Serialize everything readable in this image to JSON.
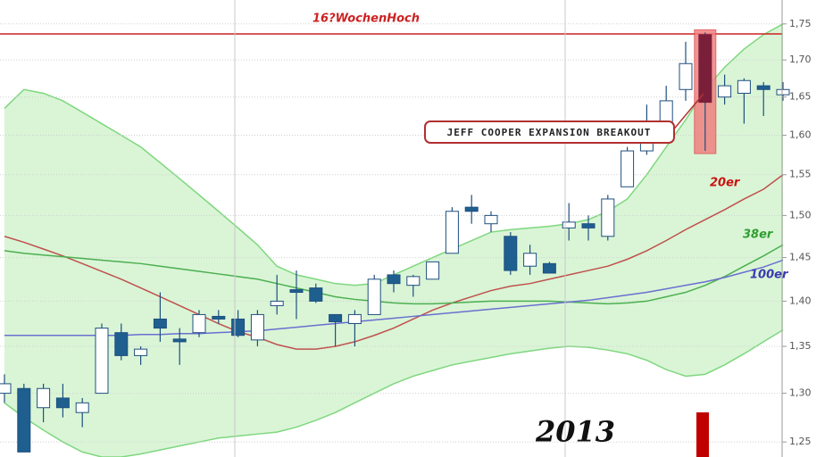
{
  "chart_data": {
    "type": "candlestick",
    "log_scale": true,
    "ylim": [
      1.235,
      1.784
    ],
    "yticks": [
      {
        "value": 1.25,
        "label": "1,25"
      },
      {
        "value": 1.3,
        "label": "1,30"
      },
      {
        "value": 1.35,
        "label": "1,35"
      },
      {
        "value": 1.4,
        "label": "1,40"
      },
      {
        "value": 1.45,
        "label": "1,45"
      },
      {
        "value": 1.5,
        "label": "1,50"
      },
      {
        "value": 1.55,
        "label": "1,55"
      },
      {
        "value": 1.6,
        "label": "1,60"
      },
      {
        "value": 1.65,
        "label": "1,65"
      },
      {
        "value": 1.7,
        "label": "1,70"
      },
      {
        "value": 1.75,
        "label": "1,75"
      }
    ],
    "grid": true,
    "up_color": "#ffffff",
    "down_color": "#1f5f8f",
    "open": [
      1.3,
      1.305,
      1.285,
      1.295,
      1.28,
      1.3,
      1.365,
      1.34,
      1.38,
      1.358,
      1.365,
      1.383,
      1.38,
      1.357,
      1.395,
      1.413,
      1.415,
      1.385,
      1.375,
      1.385,
      1.43,
      1.418,
      1.425,
      1.455,
      1.51,
      1.49,
      1.475,
      1.44,
      1.443,
      1.485,
      1.49,
      1.475,
      1.535,
      1.58,
      1.6,
      1.66,
      1.735,
      1.65,
      1.655,
      1.665,
      1.653
    ],
    "high": [
      1.32,
      1.31,
      1.31,
      1.31,
      1.295,
      1.375,
      1.375,
      1.35,
      1.41,
      1.37,
      1.39,
      1.39,
      1.39,
      1.39,
      1.43,
      1.435,
      1.42,
      1.385,
      1.39,
      1.43,
      1.435,
      1.43,
      1.445,
      1.51,
      1.525,
      1.505,
      1.48,
      1.465,
      1.445,
      1.515,
      1.5,
      1.525,
      1.585,
      1.64,
      1.665,
      1.725,
      1.738,
      1.68,
      1.675,
      1.67,
      1.67
    ],
    "low": [
      1.29,
      1.24,
      1.27,
      1.275,
      1.265,
      1.3,
      1.335,
      1.33,
      1.355,
      1.33,
      1.36,
      1.375,
      1.36,
      1.35,
      1.385,
      1.38,
      1.398,
      1.35,
      1.35,
      1.385,
      1.41,
      1.405,
      1.425,
      1.455,
      1.49,
      1.48,
      1.43,
      1.43,
      1.435,
      1.47,
      1.47,
      1.47,
      1.535,
      1.575,
      1.595,
      1.645,
      1.58,
      1.64,
      1.615,
      1.625,
      1.645
    ],
    "close": [
      1.31,
      1.24,
      1.305,
      1.285,
      1.29,
      1.37,
      1.34,
      1.347,
      1.37,
      1.355,
      1.385,
      1.38,
      1.362,
      1.385,
      1.4,
      1.41,
      1.4,
      1.377,
      1.385,
      1.425,
      1.42,
      1.428,
      1.445,
      1.505,
      1.505,
      1.5,
      1.435,
      1.455,
      1.432,
      1.492,
      1.485,
      1.52,
      1.58,
      1.6,
      1.645,
      1.695,
      1.643,
      1.665,
      1.672,
      1.66,
      1.66
    ],
    "series": [
      {
        "name": "20er",
        "color": "#c0504d",
        "label_color": "#cc1111",
        "values": [
          1.475,
          1.468,
          1.46,
          1.452,
          1.443,
          1.434,
          1.425,
          1.415,
          1.405,
          1.395,
          1.385,
          1.375,
          1.366,
          1.36,
          1.352,
          1.347,
          1.347,
          1.35,
          1.355,
          1.362,
          1.37,
          1.38,
          1.39,
          1.398,
          1.405,
          1.412,
          1.417,
          1.42,
          1.425,
          1.43,
          1.435,
          1.44,
          1.448,
          1.458,
          1.47,
          1.483,
          1.495,
          1.507,
          1.52,
          1.532,
          1.55
        ]
      },
      {
        "name": "38er",
        "color": "#4caf50",
        "label_color": "#2e9e2e",
        "values": [
          1.458,
          1.455,
          1.453,
          1.451,
          1.449,
          1.447,
          1.445,
          1.443,
          1.44,
          1.437,
          1.434,
          1.431,
          1.428,
          1.425,
          1.42,
          1.415,
          1.41,
          1.405,
          1.402,
          1.4,
          1.398,
          1.397,
          1.397,
          1.398,
          1.399,
          1.4,
          1.4,
          1.4,
          1.4,
          1.399,
          1.398,
          1.397,
          1.398,
          1.4,
          1.405,
          1.41,
          1.418,
          1.428,
          1.44,
          1.452,
          1.465
        ]
      },
      {
        "name": "100er",
        "color": "#6a6fd0",
        "label_color": "#3a3ab0",
        "values": [
          1.362,
          1.362,
          1.362,
          1.362,
          1.362,
          1.362,
          1.362,
          1.363,
          1.363,
          1.364,
          1.364,
          1.365,
          1.366,
          1.367,
          1.369,
          1.371,
          1.373,
          1.375,
          1.377,
          1.379,
          1.381,
          1.383,
          1.385,
          1.387,
          1.389,
          1.391,
          1.393,
          1.395,
          1.397,
          1.399,
          1.401,
          1.404,
          1.407,
          1.41,
          1.414,
          1.418,
          1.422,
          1.427,
          1.433,
          1.439,
          1.447
        ]
      }
    ],
    "bands": {
      "color": "#7fd77f",
      "fill": "#d9f5d6",
      "upper": [
        1.635,
        1.66,
        1.655,
        1.645,
        1.63,
        1.615,
        1.6,
        1.585,
        1.565,
        1.545,
        1.525,
        1.505,
        1.485,
        1.465,
        1.44,
        1.43,
        1.425,
        1.42,
        1.418,
        1.42,
        1.43,
        1.44,
        1.45,
        1.46,
        1.47,
        1.48,
        1.483,
        1.485,
        1.487,
        1.49,
        1.495,
        1.505,
        1.52,
        1.55,
        1.585,
        1.62,
        1.66,
        1.69,
        1.715,
        1.735,
        1.75
      ],
      "lower": [
        1.29,
        1.275,
        1.262,
        1.25,
        1.24,
        1.235,
        1.235,
        1.238,
        1.242,
        1.246,
        1.25,
        1.254,
        1.256,
        1.258,
        1.26,
        1.265,
        1.272,
        1.28,
        1.29,
        1.3,
        1.31,
        1.318,
        1.324,
        1.33,
        1.334,
        1.338,
        1.342,
        1.345,
        1.348,
        1.35,
        1.349,
        1.346,
        1.342,
        1.335,
        1.325,
        1.318,
        1.32,
        1.33,
        1.342,
        1.355,
        1.368
      ]
    },
    "reference_line": {
      "value": 1.736,
      "label": "16?WochenHoch",
      "color": "#cc2222"
    },
    "highlight_index": 36,
    "annotation": "JEFF COOPER EXPANSION BREAKOUT",
    "year_label": "2013"
  }
}
